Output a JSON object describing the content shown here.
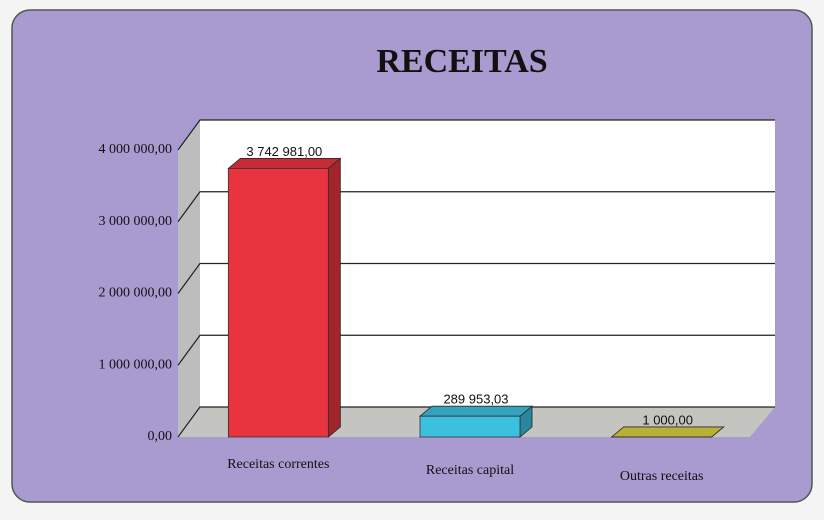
{
  "chart_data": {
    "type": "bar3d",
    "title": "RECEITAS",
    "categories": [
      "Receitas correntes",
      "Receitas capital",
      "Outras receitas"
    ],
    "values": [
      3742981.0,
      289953.03,
      1000.0
    ],
    "value_labels": [
      "3 742 981,00",
      "289 953,03",
      "1 000,00"
    ],
    "colors": [
      "#e8343f",
      "#3cc0e0",
      "#d8d040"
    ],
    "ylim": [
      0,
      4000000
    ],
    "yticks": [
      {
        "value": 0,
        "label": "0,00"
      },
      {
        "value": 1000000,
        "label": "1 000 000,00"
      },
      {
        "value": 2000000,
        "label": "2 000 000,00"
      },
      {
        "value": 3000000,
        "label": "3 000 000,00"
      },
      {
        "value": 4000000,
        "label": "4 000 000,00"
      }
    ],
    "grid": true
  }
}
